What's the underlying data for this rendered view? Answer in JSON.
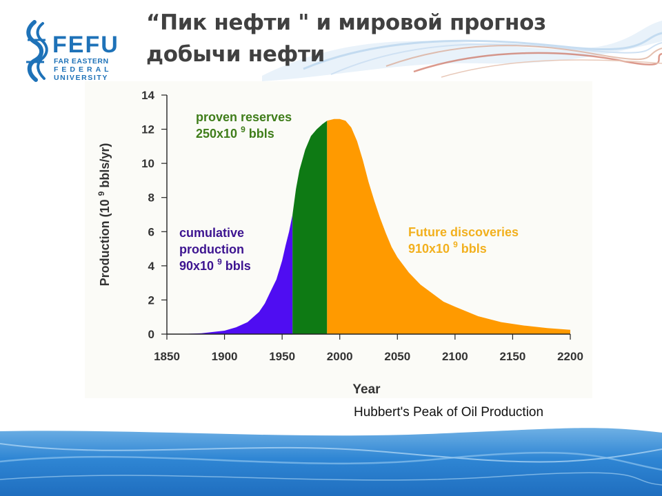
{
  "slide": {
    "title_line1": "“Пик нефти \" и мировой прогноз",
    "title_line2": "добычи нефти",
    "caption": "Hubbert's Peak of Oil Production"
  },
  "logo": {
    "name": "FEFU",
    "line1": "FAR EASTERN",
    "line2": "FEDERAL",
    "line3": "UNIVERSITY"
  },
  "chart_data": {
    "type": "area",
    "title": "",
    "xlabel": "Year",
    "ylabel": "Production (10 9 bbls/yr)",
    "ylabel_parts": {
      "main": "Production (10",
      "sup": "9",
      "unit": "bbls/yr)"
    },
    "xlim": [
      1850,
      2200
    ],
    "ylim": [
      0,
      14
    ],
    "x_ticks": [
      1850,
      1900,
      1950,
      2000,
      2050,
      2100,
      2150,
      2200
    ],
    "y_ticks": [
      0,
      2,
      4,
      6,
      8,
      10,
      12,
      14
    ],
    "grid": false,
    "series": [
      {
        "name": "cumulative production",
        "color": "#4f0df2",
        "x": [
          1860,
          1880,
          1900,
          1910,
          1920,
          1930,
          1935,
          1940,
          1945,
          1950,
          1953,
          1956,
          1959
        ],
        "y": [
          0,
          0.05,
          0.2,
          0.4,
          0.7,
          1.3,
          1.8,
          2.5,
          3.2,
          4.3,
          5.2,
          6.0,
          7.0
        ]
      },
      {
        "name": "proven reserves",
        "color": "#0e7a14",
        "x": [
          1959,
          1962,
          1965,
          1970,
          1975,
          1980,
          1985,
          1989
        ],
        "y": [
          7.0,
          8.5,
          9.6,
          10.8,
          11.6,
          12.0,
          12.3,
          12.5
        ]
      },
      {
        "name": "Future discoveries",
        "color": "#ff9a00",
        "x": [
          1989,
          1995,
          2000,
          2005,
          2010,
          2015,
          2020,
          2025,
          2030,
          2035,
          2040,
          2045,
          2050,
          2060,
          2070,
          2080,
          2090,
          2100,
          2120,
          2140,
          2160,
          2180,
          2200
        ],
        "y": [
          12.5,
          12.6,
          12.6,
          12.5,
          12.1,
          11.3,
          10.2,
          8.9,
          7.8,
          6.8,
          5.9,
          5.1,
          4.5,
          3.6,
          2.9,
          2.4,
          1.9,
          1.6,
          1.05,
          0.7,
          0.5,
          0.35,
          0.25
        ]
      }
    ],
    "annotations": [
      {
        "lines": [
          "cumulative",
          "production",
          "90x10 9 bbls"
        ],
        "main": "90x10",
        "sup": "9",
        "unit": "bbls",
        "color": "#3d1490"
      },
      {
        "lines": [
          "proven reserves",
          "250x10 9 bbls"
        ],
        "main": "250x10",
        "sup": "9",
        "unit": "bbls",
        "color": "#3f7d1a"
      },
      {
        "lines": [
          "Future discoveries",
          "910x10 9 bbls"
        ],
        "main": "910x10",
        "sup": "9",
        "unit": "bbls",
        "color": "#f2b01e"
      }
    ]
  }
}
